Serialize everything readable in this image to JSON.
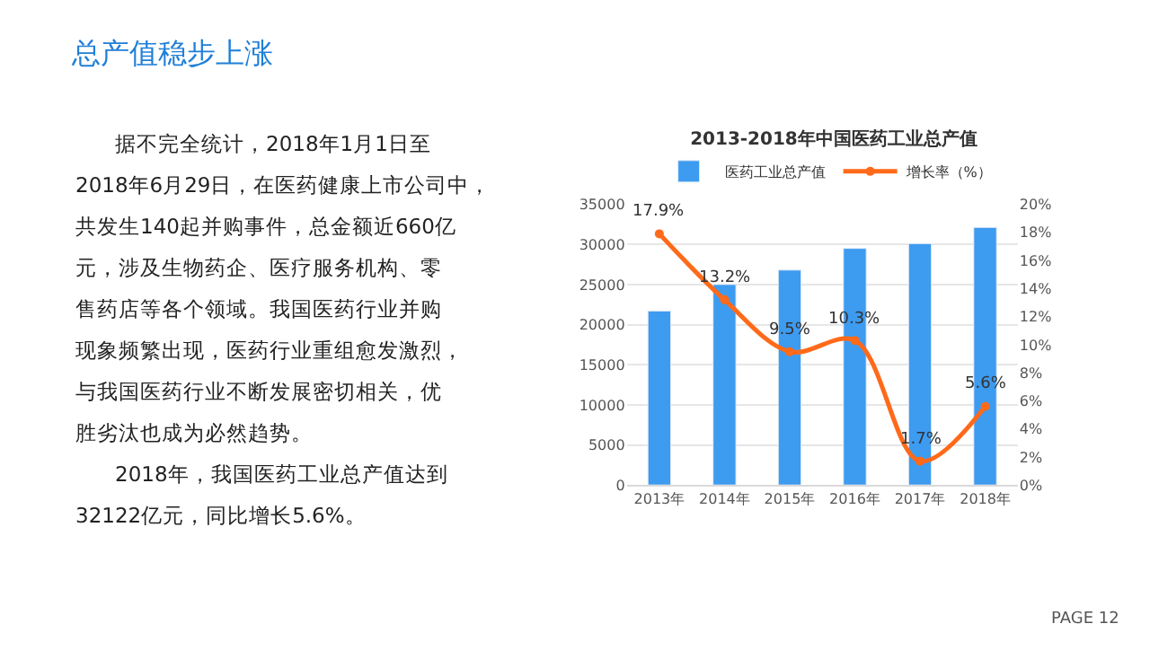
{
  "chart_data": {
    "type": "bar",
    "title": "2013-2018年中国医药工业总产值",
    "categories": [
      "2013年",
      "2014年",
      "2015年",
      "2016年",
      "2017年",
      "2018年"
    ],
    "series": [
      {
        "name": "医药工业总产值",
        "color": "#3d9bf0",
        "values": [
          21700,
          25000,
          26800,
          29500,
          30100,
          32122
        ]
      },
      {
        "name": "增长率（%）",
        "type": "line",
        "axis": "y2",
        "color": "#ff6a1a",
        "marker": "circle",
        "values": [
          17.9,
          13.2,
          9.5,
          10.3,
          1.7,
          5.6
        ],
        "value_labels": [
          "17.9%",
          "13.2%",
          "9.5%",
          "10.3%",
          "1.7%",
          "5.6%"
        ]
      }
    ],
    "ylim": [
      0,
      35000
    ],
    "yticks": [
      0,
      5000,
      10000,
      15000,
      20000,
      25000,
      30000,
      35000
    ],
    "y2lim": [
      0,
      20
    ],
    "y2ticks": [
      {
        "value": 0,
        "label": "0%"
      },
      {
        "value": 2,
        "label": "2%"
      },
      {
        "value": 4,
        "label": "4%"
      },
      {
        "value": 6,
        "label": "6%"
      },
      {
        "value": 8,
        "label": "8%"
      },
      {
        "value": 10,
        "label": "10%"
      },
      {
        "value": 12,
        "label": "12%"
      },
      {
        "value": 14,
        "label": "14%"
      },
      {
        "value": 16,
        "label": "16%"
      },
      {
        "value": 18,
        "label": "18%"
      },
      {
        "value": 20,
        "label": "20%"
      }
    ],
    "grid": "y",
    "legend": "top",
    "annotations": [
      "总产值稳步上涨",
      "据不完全统计，2018年1月1日至2018年6月29日，在医药健康上市公司中，共发生140起并购事件，总金额近660亿元，涉及生物药企、医疗服务机构、零售药店等各个领域。我国医药行业并购现象频繁出现，医药行业重组愈发激烈，与我国医药行业不断发展密切相关，优胜劣汰也成为必然趋势。",
      "2018年，我国医药工业总产值达到32122亿元，同比增长5.6%。",
      "PAGE 12"
    ]
  }
}
